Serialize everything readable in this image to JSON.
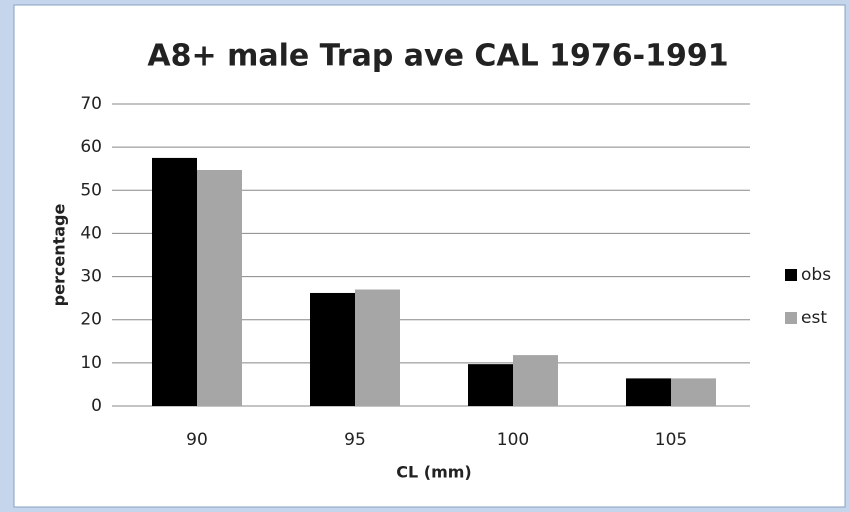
{
  "chart_data": {
    "type": "bar",
    "title": "A8+ male Trap ave CAL 1976-1991",
    "x_label": "CL (mm)",
    "y_label": "percentage",
    "categories": [
      "90",
      "95",
      "100",
      "105"
    ],
    "series": [
      {
        "name": "obs",
        "color": "#000000",
        "values": [
          57.5,
          26.2,
          9.7,
          6.4
        ]
      },
      {
        "name": "est",
        "color": "#a6a6a6",
        "values": [
          54.7,
          27.0,
          11.8,
          6.4
        ]
      }
    ],
    "ylim": [
      0,
      70
    ],
    "yticks": [
      0,
      10,
      20,
      30,
      40,
      50,
      60,
      70
    ],
    "grid": true,
    "legend": "right"
  }
}
